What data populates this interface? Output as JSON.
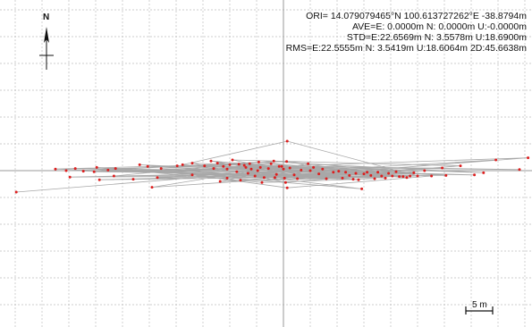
{
  "stats": {
    "ori": "ORI= 14.079079465°N  100.613727262°E  -38.8794m",
    "ave": "AVE=E: 0.0000m N: 0.0000m U:-0.0000m",
    "std": "STD=E:22.6569m N: 3.5578m U:18.6900m",
    "rms": "RMS=E:22.5555m N: 3.5419m U:18.6064m 2D:45.6638m"
  },
  "north_label": "N",
  "scale_label": "5 m",
  "colors": {
    "background": "#ffffff",
    "grid": "#bfbfbf",
    "axis": "#9a9a9a",
    "track": "#a8a8a8",
    "point": "#dd1f1f",
    "text": "#111111"
  },
  "chart_data": {
    "type": "scatter",
    "x_unit": "m (East)",
    "y_unit": "m (North)",
    "grid": true,
    "points": [
      [
        -49.8,
        -4.0
      ],
      [
        -42.5,
        0.3
      ],
      [
        -40.5,
        0.0
      ],
      [
        -39.8,
        -1.2
      ],
      [
        -38.8,
        0.4
      ],
      [
        -37.3,
        -0.1
      ],
      [
        -35.3,
        -0.2
      ],
      [
        -34.8,
        0.6
      ],
      [
        -34.3,
        -1.7
      ],
      [
        -32.7,
        0.1
      ],
      [
        -31.3,
        0.4
      ],
      [
        -31.6,
        -1.0
      ],
      [
        -28.0,
        -1.6
      ],
      [
        -26.8,
        1.1
      ],
      [
        -25.3,
        0.8
      ],
      [
        -24.5,
        -3.1
      ],
      [
        -23.5,
        -1.3
      ],
      [
        -22.8,
        0.4
      ],
      [
        -19.8,
        0.9
      ],
      [
        -18.8,
        1.1
      ],
      [
        -17.0,
        1.4
      ],
      [
        -17.0,
        -0.8
      ],
      [
        -14.7,
        0.9
      ],
      [
        -13.5,
        1.8
      ],
      [
        -13.0,
        0.4
      ],
      [
        -12.3,
        1.4
      ],
      [
        -11.8,
        -2.0
      ],
      [
        -11.2,
        0.8
      ],
      [
        -10.5,
        0.3
      ],
      [
        -10.5,
        -1.4
      ],
      [
        -10.0,
        1.1
      ],
      [
        -9.5,
        2.0
      ],
      [
        -8.7,
        -0.2
      ],
      [
        -8.3,
        1.2
      ],
      [
        -8.0,
        -1.8
      ],
      [
        -7.3,
        1.0
      ],
      [
        -7.0,
        0.6
      ],
      [
        -6.6,
        -0.5
      ],
      [
        -6.3,
        1.3
      ],
      [
        -6.0,
        0.3
      ],
      [
        -5.3,
        -1.0
      ],
      [
        -4.8,
        0.0
      ],
      [
        -4.6,
        1.6
      ],
      [
        -4.3,
        0.6
      ],
      [
        -4.0,
        -2.2
      ],
      [
        -3.6,
        -1.3
      ],
      [
        -2.8,
        0.4
      ],
      [
        -2.3,
        1.3
      ],
      [
        -1.8,
        1.8
      ],
      [
        -1.6,
        -1.3
      ],
      [
        -1.3,
        -0.7
      ],
      [
        -0.8,
        0.8
      ],
      [
        -0.3,
        0.8
      ],
      [
        0.0,
        0.3
      ],
      [
        0.2,
        -1.4
      ],
      [
        0.6,
        1.7
      ],
      [
        0.7,
        5.5
      ],
      [
        0.4,
        -2.2
      ],
      [
        0.7,
        -3.2
      ],
      [
        1.2,
        0.5
      ],
      [
        2.0,
        -0.8
      ],
      [
        2.6,
        -1.5
      ],
      [
        3.3,
        0.1
      ],
      [
        4.6,
        1.3
      ],
      [
        5.0,
        0.0
      ],
      [
        5.6,
        0.6
      ],
      [
        6.6,
        -0.6
      ],
      [
        7.3,
        0.3
      ],
      [
        8.0,
        -1.5
      ],
      [
        9.3,
        -0.3
      ],
      [
        10.3,
        -0.1
      ],
      [
        11.0,
        -1.4
      ],
      [
        11.6,
        -0.3
      ],
      [
        12.3,
        -0.9
      ],
      [
        13.0,
        -1.6
      ],
      [
        13.5,
        -0.5
      ],
      [
        14.0,
        -1.7
      ],
      [
        14.6,
        -3.4
      ],
      [
        15.0,
        -0.6
      ],
      [
        15.6,
        -0.3
      ],
      [
        16.3,
        -0.9
      ],
      [
        17.0,
        -1.5
      ],
      [
        17.6,
        -0.3
      ],
      [
        18.3,
        -1.0
      ],
      [
        19.0,
        -1.4
      ],
      [
        19.6,
        -0.5
      ],
      [
        20.3,
        -1.0
      ],
      [
        21.0,
        -0.2
      ],
      [
        21.6,
        -1.1
      ],
      [
        22.3,
        -1.1
      ],
      [
        23.0,
        -1.3
      ],
      [
        23.6,
        -1.0
      ],
      [
        24.3,
        -0.4
      ],
      [
        25.0,
        -1.0
      ],
      [
        26.3,
        0.0
      ],
      [
        27.6,
        -1.0
      ],
      [
        29.6,
        0.5
      ],
      [
        30.3,
        -0.9
      ],
      [
        33.0,
        0.9
      ],
      [
        35.6,
        -0.8
      ],
      [
        37.3,
        -0.4
      ],
      [
        39.6,
        2.0
      ],
      [
        44.0,
        0.2
      ],
      [
        45.6,
        2.4
      ]
    ]
  }
}
